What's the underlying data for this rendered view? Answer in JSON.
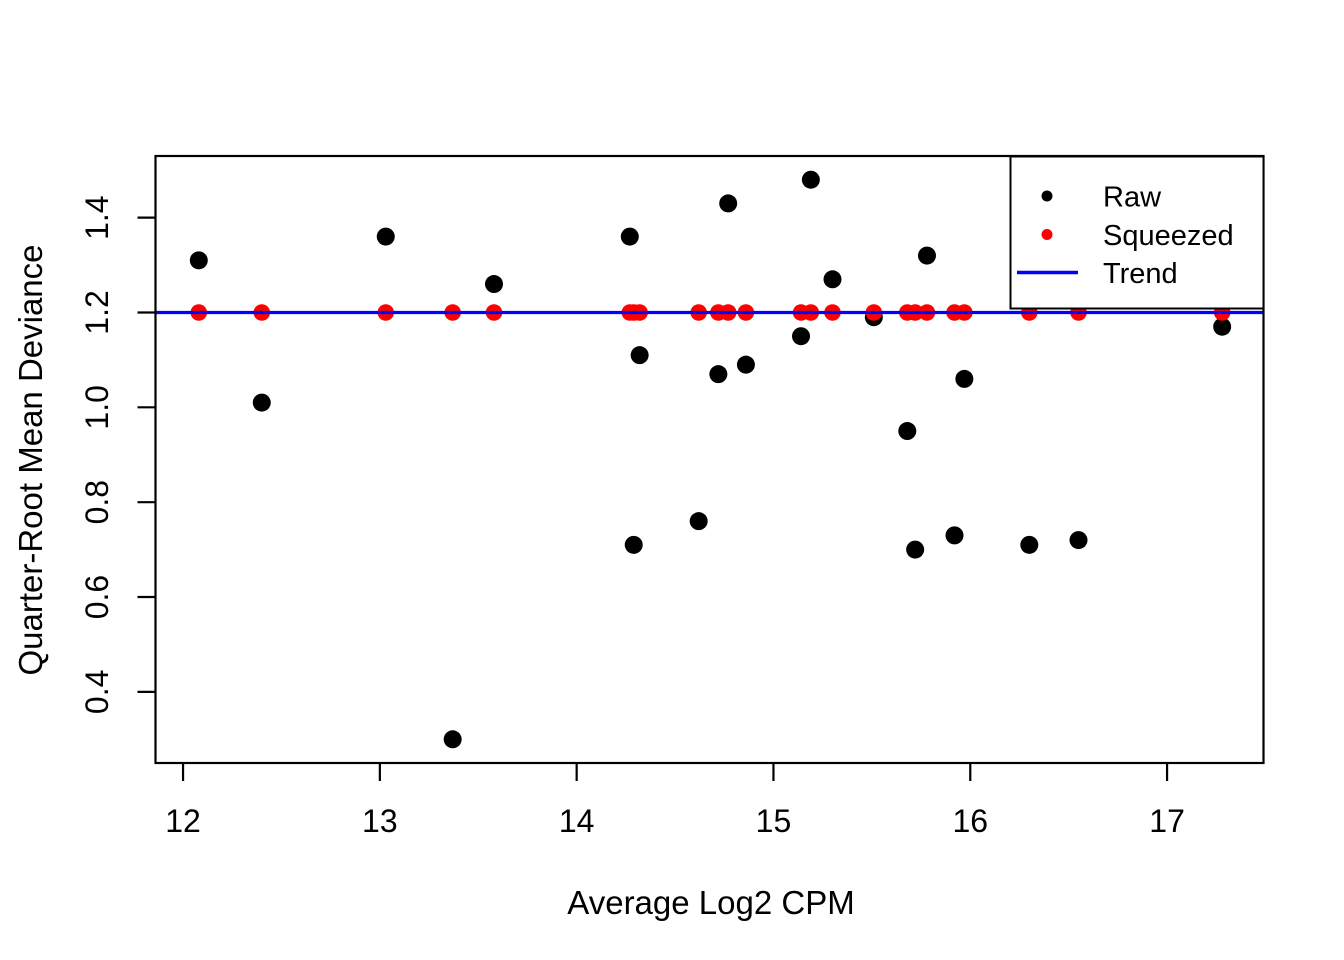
{
  "figure": {
    "background": "#ffffff",
    "x_axis_title": "Average Log2 CPM",
    "y_axis_title": "Quarter-Root Mean Deviance"
  },
  "legend": {
    "items": [
      {
        "label": "Raw",
        "marker": "point",
        "color": "#000000"
      },
      {
        "label": "Squeezed",
        "marker": "point",
        "color": "#ff0000"
      },
      {
        "label": "Trend",
        "marker": "line",
        "color": "#0000ff"
      }
    ]
  },
  "chart_data": {
    "type": "scatter",
    "title": "",
    "xlabel": "Average Log2 CPM",
    "ylabel": "Quarter-Root Mean Deviance",
    "xlim": [
      11.86,
      17.49
    ],
    "ylim": [
      0.25,
      1.53
    ],
    "grid": false,
    "legend_position": "top-right",
    "x_ticks": [
      {
        "value": 12,
        "label": "12"
      },
      {
        "value": 13,
        "label": "13"
      },
      {
        "value": 14,
        "label": "14"
      },
      {
        "value": 15,
        "label": "15"
      },
      {
        "value": 16,
        "label": "16"
      },
      {
        "value": 17,
        "label": "17"
      }
    ],
    "y_ticks": [
      {
        "value": 0.4,
        "label": "0.4"
      },
      {
        "value": 0.6,
        "label": "0.6"
      },
      {
        "value": 0.8,
        "label": "0.8"
      },
      {
        "value": 1.0,
        "label": "1.0"
      },
      {
        "value": 1.2,
        "label": "1.2"
      },
      {
        "value": 1.4,
        "label": "1.4"
      }
    ],
    "x": [
      12.08,
      12.4,
      13.03,
      13.37,
      13.58,
      14.27,
      14.29,
      14.32,
      14.62,
      14.72,
      14.77,
      14.86,
      15.14,
      15.19,
      15.3,
      15.51,
      15.68,
      15.72,
      15.78,
      15.92,
      15.97,
      16.3,
      16.55,
      17.28
    ],
    "series": [
      {
        "name": "Raw",
        "type": "scatter",
        "color": "#000000",
        "y": [
          1.31,
          1.01,
          1.36,
          0.3,
          1.26,
          1.36,
          0.71,
          1.11,
          0.76,
          1.07,
          1.43,
          1.09,
          1.15,
          1.48,
          1.27,
          1.19,
          0.95,
          0.7,
          1.32,
          0.73,
          1.06,
          0.71,
          0.72,
          1.17
        ]
      },
      {
        "name": "Squeezed",
        "type": "scatter",
        "color": "#ff0000",
        "y": [
          1.2,
          1.2,
          1.2,
          1.2,
          1.2,
          1.2,
          1.2,
          1.2,
          1.2,
          1.2,
          1.2,
          1.2,
          1.2,
          1.2,
          1.2,
          1.2,
          1.2,
          1.2,
          1.2,
          1.2,
          1.2,
          1.2,
          1.2,
          1.2
        ]
      }
    ],
    "trend": {
      "name": "Trend",
      "type": "line",
      "color": "#0000ff",
      "y": 1.2
    }
  }
}
